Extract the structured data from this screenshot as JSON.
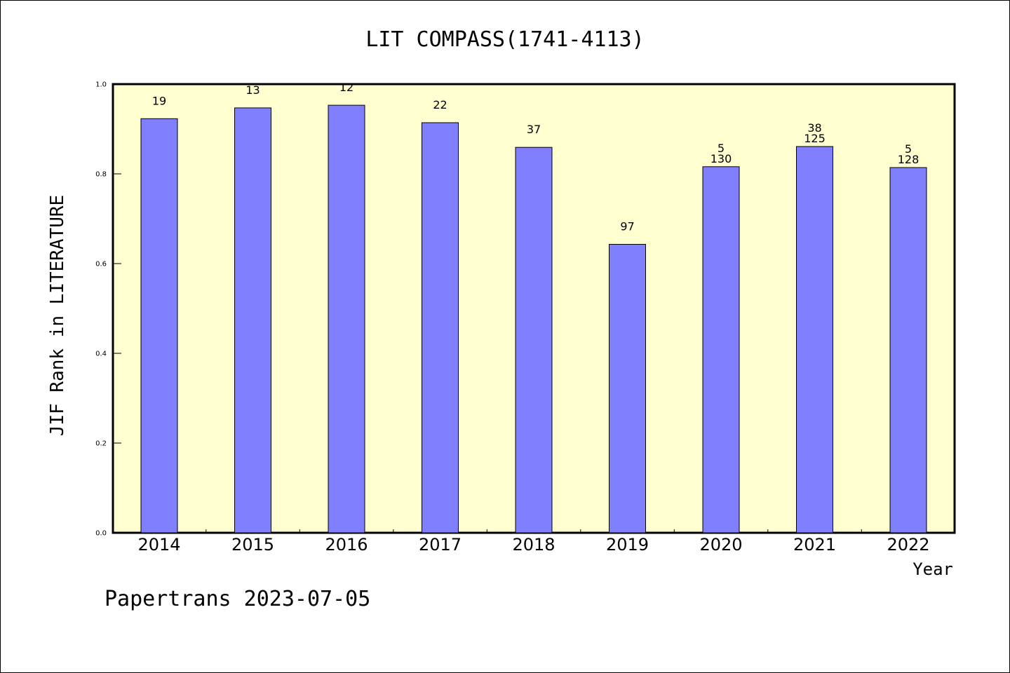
{
  "colors": {
    "plot_background": "#ffffd0",
    "bar_fill": "#8080ff",
    "bar_stroke": "#000000",
    "axis": "#000000"
  },
  "footer": {
    "text": "Papertrans 2023-07-05"
  },
  "chart_data": {
    "type": "bar",
    "title": "LIT COMPASS(1741-4113)",
    "xlabel": "Year",
    "ylabel": "JIF Rank in LITERATURE",
    "ylim": [
      0,
      1.0
    ],
    "yticks": [
      "0.0",
      "0.2",
      "0.4",
      "0.6",
      "0.8",
      "1.0"
    ],
    "grid": false,
    "categories": [
      "2014",
      "2015",
      "2016",
      "2017",
      "2018",
      "2019",
      "2020",
      "2021",
      "2022"
    ],
    "values": [
      0.923,
      0.947,
      0.953,
      0.914,
      0.859,
      0.643,
      0.816,
      0.861,
      0.814
    ],
    "bar_labels": [
      [
        "19"
      ],
      [
        "13"
      ],
      [
        "12"
      ],
      [
        "22"
      ],
      [
        "37"
      ],
      [
        "97"
      ],
      [
        "5",
        "130"
      ],
      [
        "38",
        "125"
      ],
      [
        "5",
        "128"
      ]
    ]
  }
}
